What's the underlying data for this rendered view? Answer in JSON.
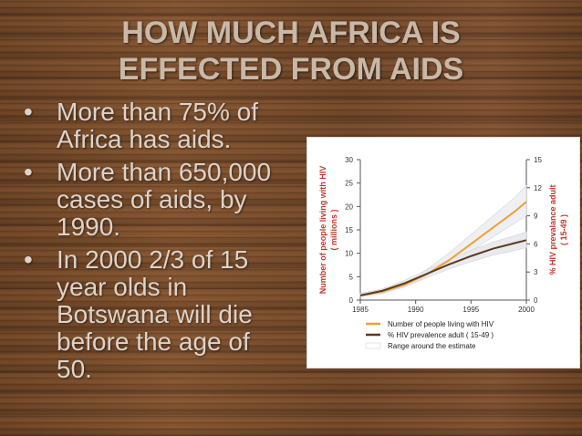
{
  "slide": {
    "title_line1": "HOW MUCH AFRICA IS",
    "title_line2": "EFFECTED FROM AIDS",
    "bullets": [
      "More than 75% of Africa has aids.",
      "More than 650,000 cases of aids, by 1990.",
      "In 2000 2/3 of 15 year olds in Botswana will die before the age of 50."
    ]
  },
  "chart_data": {
    "type": "line",
    "x": [
      1985,
      1987,
      1989,
      1991,
      1993,
      1995,
      1997,
      1999,
      2000
    ],
    "xlim": [
      1985,
      2000
    ],
    "xticks": [
      "1985",
      "1990",
      "1995",
      "2000"
    ],
    "ylabel": "Number of people living with HIV ( millions )",
    "ylim": [
      0,
      30
    ],
    "yticks": [
      "0",
      "5",
      "10",
      "15",
      "20",
      "25",
      "30"
    ],
    "y2label": "% HIV prevalance adult ( 15-49 )",
    "y2lim": [
      0,
      15
    ],
    "y2ticks": [
      "0",
      "3",
      "6",
      "9",
      "12",
      "15"
    ],
    "series": [
      {
        "name": "Number of people living with HIV",
        "axis": "left",
        "color": "#f0a030",
        "values": [
          1.0,
          1.8,
          3.3,
          5.5,
          8.5,
          12.0,
          15.5,
          19.0,
          21.0
        ],
        "band_low": [
          0.7,
          1.4,
          2.8,
          4.8,
          7.5,
          10.5,
          13.5,
          16.5,
          18.0
        ],
        "band_high": [
          1.4,
          2.4,
          4.0,
          6.5,
          10.0,
          14.0,
          18.0,
          22.0,
          24.5
        ]
      },
      {
        "name": "% HIV prevalence adult ( 15-49 )",
        "axis": "right",
        "color": "#5c3a1e",
        "values": [
          0.5,
          1.0,
          1.8,
          2.8,
          3.8,
          4.7,
          5.5,
          6.1,
          6.4
        ],
        "band_low": [
          0.4,
          0.8,
          1.5,
          2.4,
          3.3,
          4.1,
          4.8,
          5.3,
          5.6
        ],
        "band_high": [
          0.7,
          1.2,
          2.1,
          3.2,
          4.3,
          5.3,
          6.2,
          6.9,
          7.3
        ]
      }
    ],
    "legend": {
      "position": "bottom",
      "entries": [
        "Number of people living with HIV",
        "% HIV prevalence adult ( 15-49 )",
        "Range around the estimate"
      ]
    },
    "grid": false
  }
}
